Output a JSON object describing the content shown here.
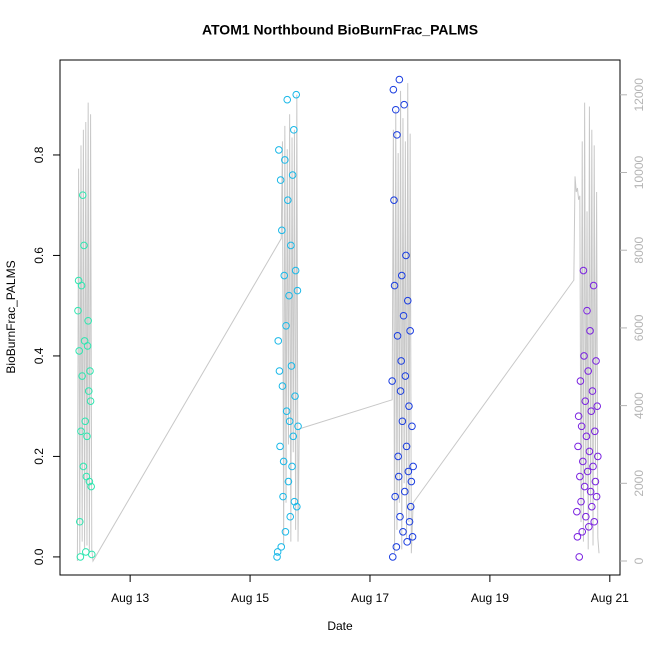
{
  "chart_data": {
    "type": "scatter",
    "title": "ATOM1 Northbound BioBurnFrac_PALMS",
    "xlabel": "Date",
    "ylabel": "BioBurnFrac_PALMS",
    "xlim": [
      11.83,
      21.17
    ],
    "xticks": [
      {
        "value": 13,
        "label": "Aug 13"
      },
      {
        "value": 15,
        "label": "Aug 15"
      },
      {
        "value": 17,
        "label": "Aug 17"
      },
      {
        "value": 19,
        "label": "Aug 19"
      },
      {
        "value": 21,
        "label": "Aug 21"
      }
    ],
    "ylim": [
      -0.036,
      0.989
    ],
    "yticks": [
      {
        "value": 0,
        "label": "0.0"
      },
      0.2,
      0.4,
      0.6,
      0.8
    ],
    "y2lim": [
      -360,
      12896
    ],
    "y2ticks": [
      0,
      2000,
      4000,
      6000,
      8000,
      10000,
      12000
    ],
    "y2tick_color": "#b4b4b4",
    "series": [
      {
        "axis": "y2",
        "color": "#c8c8c8",
        "x": [
          12.12,
          12.14,
          12.16,
          12.18,
          12.2,
          12.22,
          12.24,
          12.26,
          12.28,
          12.3,
          12.32,
          12.34,
          12.36,
          12.38,
          15.52,
          15.54,
          15.56,
          15.58,
          15.6,
          15.62,
          15.64,
          15.66,
          15.68,
          15.7,
          15.72,
          15.74,
          15.76,
          15.78,
          15.8,
          15.82,
          17.37,
          17.39,
          17.41,
          17.43,
          17.45,
          17.47,
          17.49,
          17.51,
          17.53,
          17.55,
          17.57,
          17.59,
          17.61,
          17.63,
          17.65,
          17.67,
          17.69,
          17.72,
          20.4,
          20.42,
          20.44,
          20.46,
          20.48,
          20.5,
          20.52,
          20.54,
          20.56,
          20.58,
          20.6,
          20.62,
          20.64,
          20.66,
          20.68,
          20.7,
          20.72,
          20.74,
          20.76,
          20.78,
          20.8,
          20.82
        ],
        "values": [
          0,
          10100,
          200,
          10700,
          500,
          11100,
          300,
          11300,
          400,
          11800,
          200,
          11500,
          300,
          0,
          8300,
          10800,
          400,
          11200,
          1500,
          10600,
          3000,
          11500,
          500,
          10900,
          2800,
          11100,
          800,
          12000,
          500,
          3400,
          4150,
          11100,
          200,
          11600,
          800,
          10500,
          1500,
          12100,
          300,
          11400,
          2000,
          10800,
          600,
          12300,
          1000,
          11000,
          200,
          1500,
          7230,
          9900,
          9500,
          9600,
          9300,
          9400,
          1000,
          10800,
          500,
          11800,
          2000,
          9000,
          300,
          11700,
          1500,
          11100,
          400,
          10700,
          2500,
          9500,
          600,
          200
        ]
      },
      {
        "color": "#2ee6b0",
        "x": [
          12.13,
          12.14,
          12.15,
          12.16,
          12.17,
          12.18,
          12.19,
          12.2,
          12.21,
          12.22,
          12.23,
          12.24,
          12.25,
          12.26,
          12.27,
          12.28,
          12.29,
          12.3,
          12.31,
          12.32,
          12.33,
          12.34,
          12.35,
          12.36
        ],
        "values": [
          0.49,
          0.55,
          0.41,
          0.07,
          0.0,
          0.25,
          0.54,
          0.36,
          0.72,
          0.18,
          0.62,
          0.43,
          0.27,
          0.01,
          0.16,
          0.24,
          0.42,
          0.47,
          0.33,
          0.15,
          0.37,
          0.31,
          0.14,
          0.005
        ]
      },
      {
        "color": "#19b8e8",
        "x": [
          15.45,
          15.46,
          15.47,
          15.48,
          15.49,
          15.5,
          15.51,
          15.52,
          15.53,
          15.54,
          15.55,
          15.56,
          15.57,
          15.58,
          15.59,
          15.6,
          15.61,
          15.62,
          15.63,
          15.64,
          15.65,
          15.66,
          15.67,
          15.68,
          15.69,
          15.7,
          15.71,
          15.72,
          15.73,
          15.74,
          15.75,
          15.76,
          15.77,
          15.78,
          15.79,
          15.8
        ],
        "values": [
          0.0,
          0.01,
          0.43,
          0.81,
          0.37,
          0.22,
          0.75,
          0.02,
          0.65,
          0.34,
          0.12,
          0.19,
          0.56,
          0.79,
          0.05,
          0.46,
          0.29,
          0.91,
          0.71,
          0.15,
          0.52,
          0.27,
          0.08,
          0.62,
          0.38,
          0.18,
          0.76,
          0.24,
          0.85,
          0.11,
          0.32,
          0.57,
          0.92,
          0.1,
          0.53,
          0.26
        ]
      },
      {
        "color": "#1a3de0",
        "x": [
          17.37,
          17.38,
          17.39,
          17.4,
          17.41,
          17.42,
          17.43,
          17.44,
          17.45,
          17.46,
          17.47,
          17.48,
          17.49,
          17.5,
          17.51,
          17.52,
          17.53,
          17.54,
          17.55,
          17.56,
          17.57,
          17.58,
          17.59,
          17.6,
          17.61,
          17.62,
          17.63,
          17.64,
          17.65,
          17.66,
          17.67,
          17.68,
          17.69,
          17.7,
          17.71,
          17.72
        ],
        "values": [
          0.35,
          0.0,
          0.93,
          0.71,
          0.54,
          0.12,
          0.89,
          0.02,
          0.84,
          0.44,
          0.2,
          0.16,
          0.95,
          0.08,
          0.33,
          0.39,
          0.56,
          0.27,
          0.05,
          0.48,
          0.9,
          0.13,
          0.36,
          0.6,
          0.22,
          0.03,
          0.51,
          0.17,
          0.3,
          0.07,
          0.45,
          0.1,
          0.15,
          0.26,
          0.04,
          0.18
        ]
      },
      {
        "color": "#7a22e0",
        "x": [
          20.45,
          20.46,
          20.47,
          20.48,
          20.49,
          20.5,
          20.51,
          20.52,
          20.53,
          20.54,
          20.55,
          20.56,
          20.57,
          20.58,
          20.59,
          20.6,
          20.61,
          20.62,
          20.63,
          20.64,
          20.65,
          20.66,
          20.67,
          20.68,
          20.69,
          20.7,
          20.71,
          20.72,
          20.73,
          20.74,
          20.75,
          20.76,
          20.77,
          20.78,
          20.79,
          20.8
        ],
        "values": [
          0.09,
          0.04,
          0.22,
          0.28,
          0.0,
          0.16,
          0.35,
          0.11,
          0.26,
          0.05,
          0.19,
          0.57,
          0.4,
          0.14,
          0.31,
          0.08,
          0.24,
          0.49,
          0.17,
          0.37,
          0.06,
          0.21,
          0.45,
          0.13,
          0.29,
          0.1,
          0.33,
          0.18,
          0.54,
          0.07,
          0.25,
          0.15,
          0.39,
          0.12,
          0.3,
          0.2
        ]
      }
    ]
  }
}
